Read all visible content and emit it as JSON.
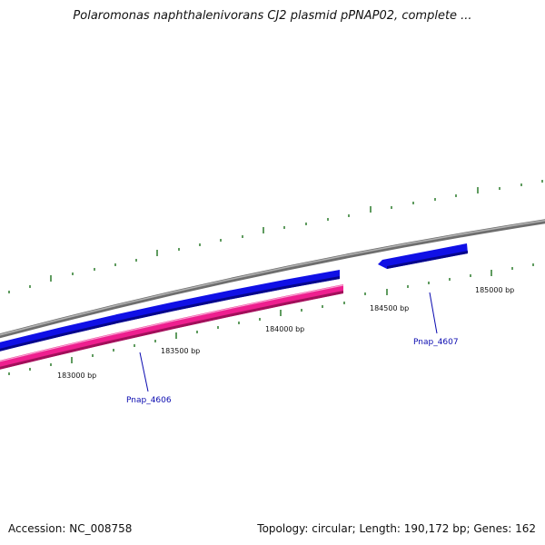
{
  "title": "Polaromonas naphthalenivorans CJ2 plasmid pPNAP02, complete ...",
  "footer": {
    "accession": "Accession: NC_008758",
    "summary": "Topology: circular; Length: 190,172 bp; Genes: 162"
  },
  "colors": {
    "backbone": "#8c8c8c",
    "gene_forward": "#1010e6",
    "gene_pink": "#ee1f8f",
    "ticks": "#2a7a2a",
    "gene_label": "#0b0bb0"
  },
  "chart_data": {
    "type": "genome-map",
    "topology": "circular",
    "length_bp": 190172,
    "visible_range_bp": [
      182700,
      185400
    ],
    "tick_labels": [
      "183000 bp",
      "183500 bp",
      "184000 bp",
      "184500 bp",
      "185000 bp"
    ],
    "genes": [
      {
        "name": "Pnap_4606",
        "color": "gene_forward"
      },
      {
        "name": "Pnap_4607",
        "color": "gene_forward"
      }
    ]
  }
}
